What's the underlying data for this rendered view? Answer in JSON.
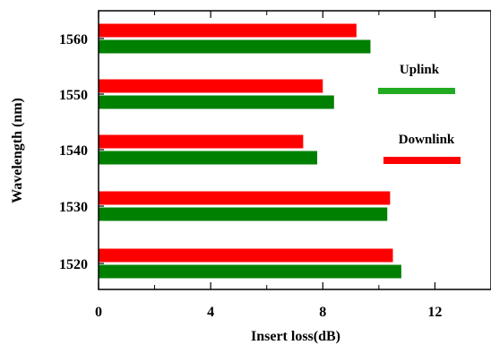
{
  "chart_data": {
    "type": "bar",
    "orientation": "horizontal",
    "title": "",
    "xlabel": "Insert loss(dB)",
    "ylabel": "Wavelength (nm)",
    "xlim": [
      0,
      14
    ],
    "x_ticks": [
      0,
      4,
      8,
      12
    ],
    "x_minor_ticks": [
      2,
      6,
      10,
      14
    ],
    "categories": [
      "1560",
      "1550",
      "1540",
      "1530",
      "1520"
    ],
    "series": [
      {
        "name": "Downlink",
        "color": "#ff0000",
        "values": [
          9.2,
          8.0,
          7.3,
          10.4,
          10.5
        ]
      },
      {
        "name": "Uplink",
        "color": "#008000",
        "values": [
          9.7,
          8.4,
          7.8,
          10.3,
          10.8
        ]
      }
    ],
    "legend": [
      {
        "label": "Uplink",
        "color": "#22aa22"
      },
      {
        "label": "Downlink",
        "color": "#ff0000"
      }
    ],
    "legend_placement": "right",
    "grid": false
  }
}
